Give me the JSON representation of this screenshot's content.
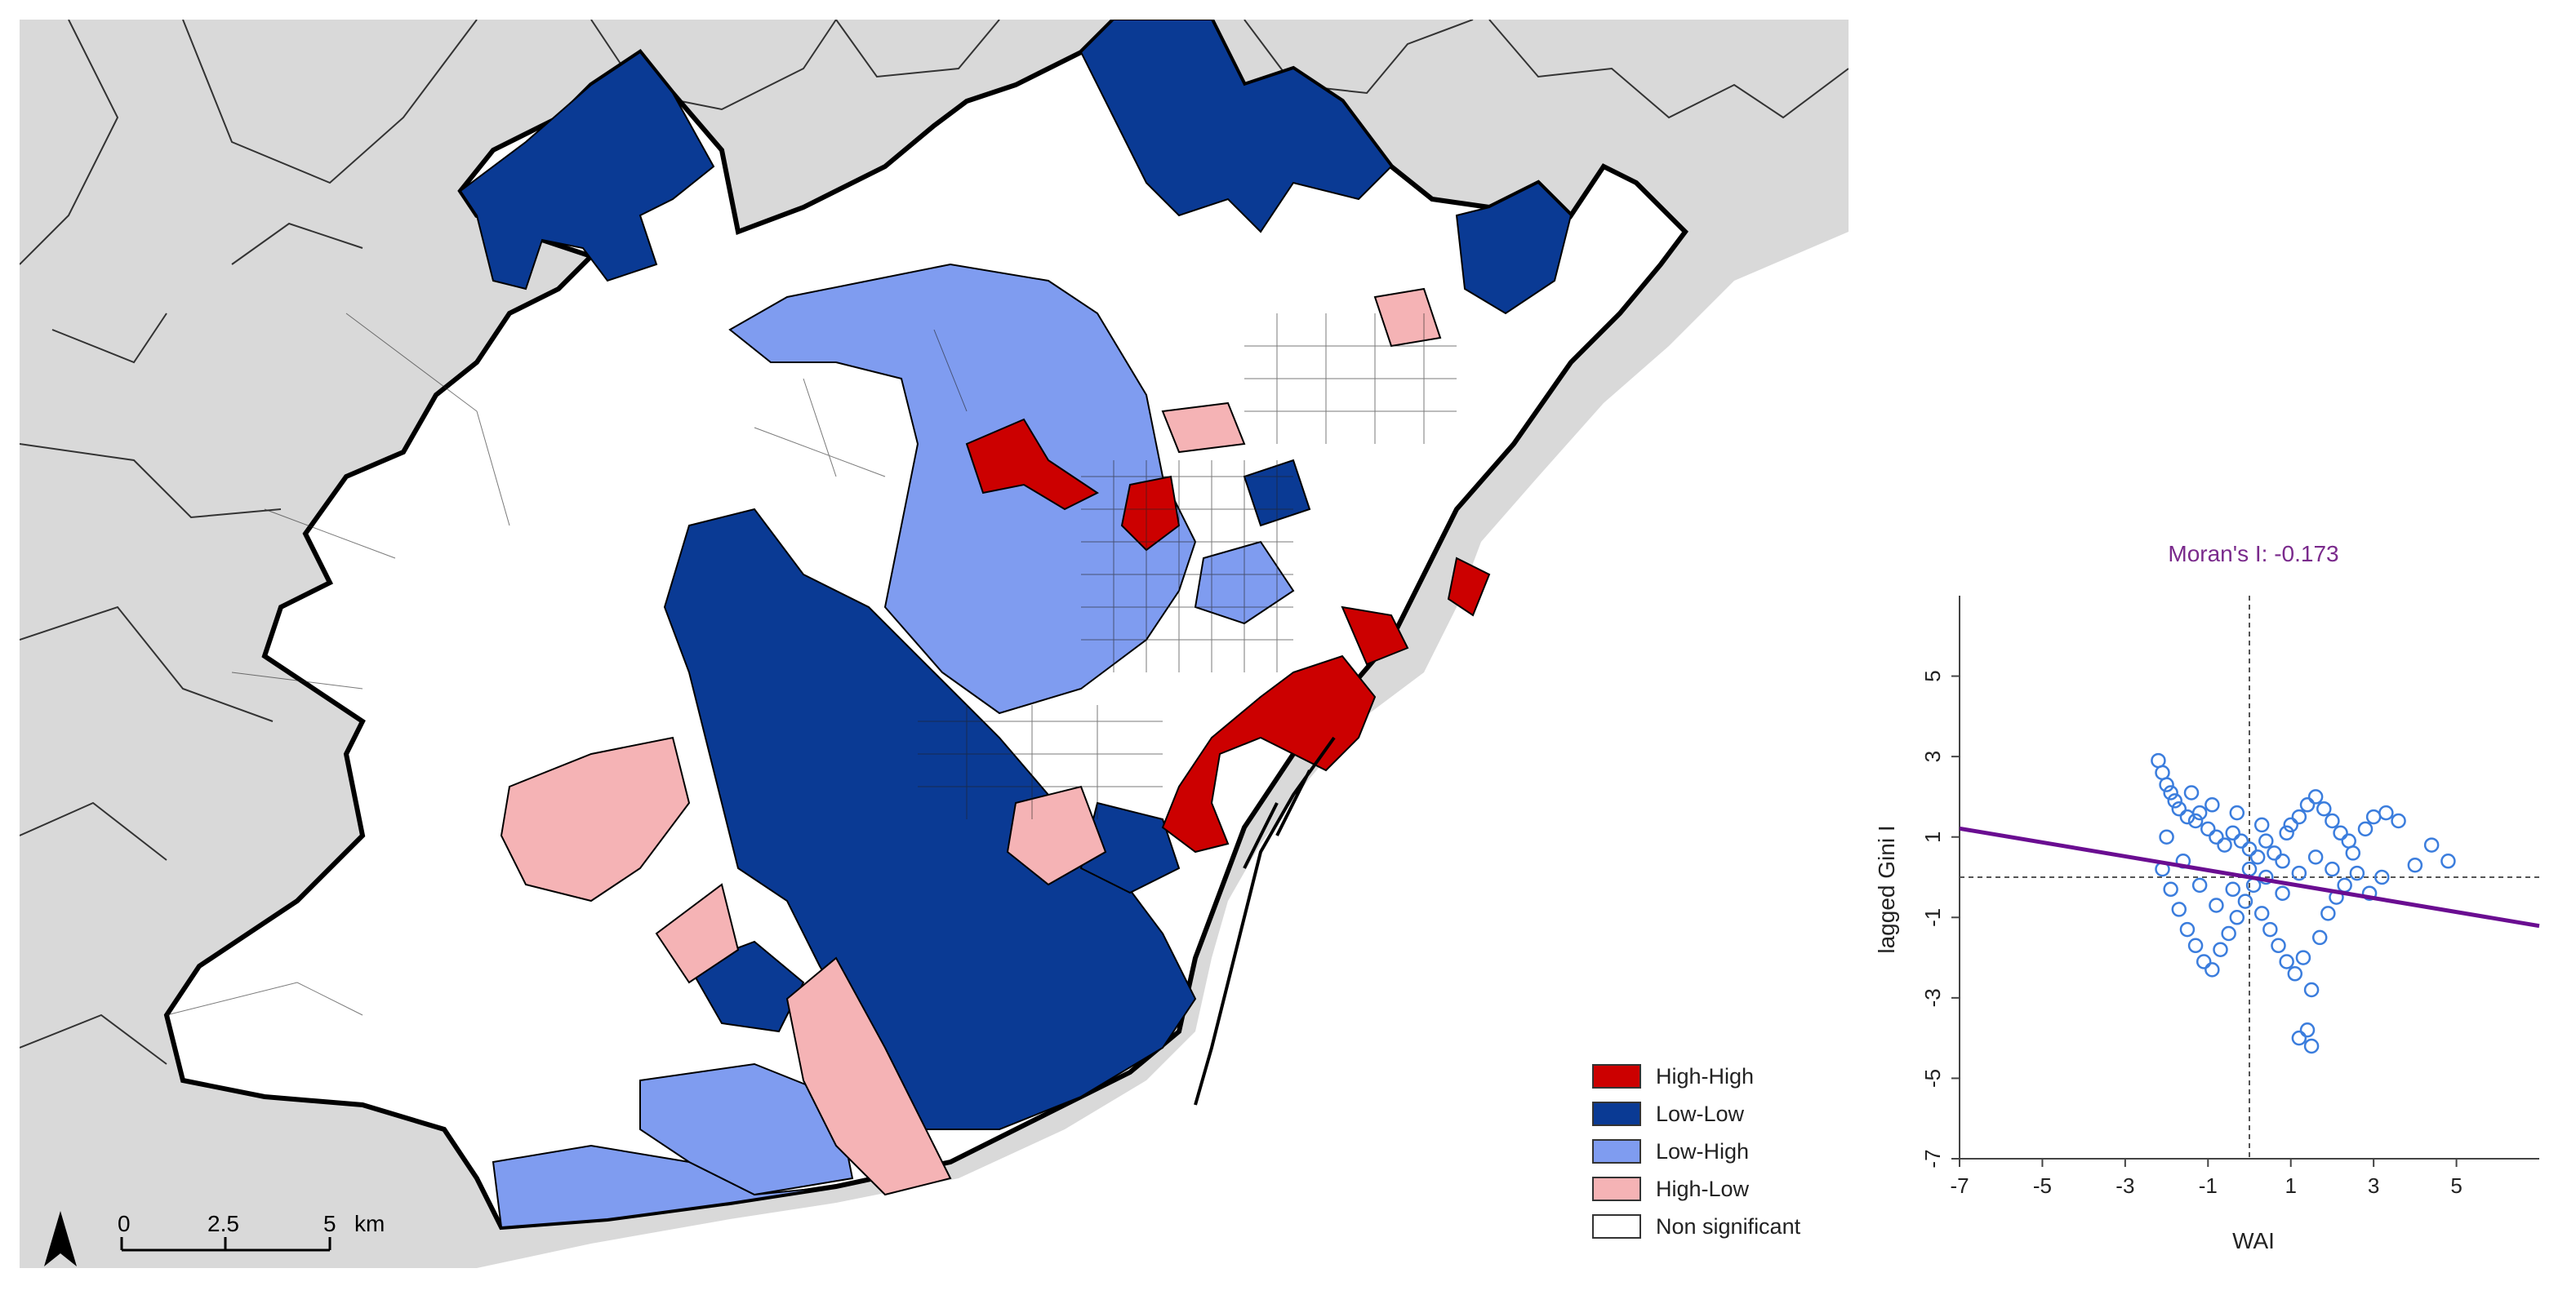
{
  "map": {
    "legend": [
      {
        "label": "High-High",
        "color": "#cc0000"
      },
      {
        "label": "Low-Low",
        "color": "#0a3a94"
      },
      {
        "label": "Low-High",
        "color": "#7f9cf0"
      },
      {
        "label": "High-Low",
        "color": "#f5b3b5"
      },
      {
        "label": "Non significant",
        "color": "#ffffff"
      }
    ],
    "scale_ticks": [
      "0",
      "2.5",
      "5"
    ],
    "scale_unit": "km",
    "north_icon": "north-arrow-icon",
    "colors": {
      "sea": "#ffffff",
      "outside": "#d9d9d9",
      "boundary": "#000000"
    }
  },
  "chart_data": {
    "type": "scatter",
    "title": "Moran's I: -0.173",
    "xlabel": "WAI",
    "ylabel": "lagged Gini I",
    "xlim": [
      -7,
      7
    ],
    "ylim": [
      -7,
      7
    ],
    "xticks": [
      "-7",
      "-5",
      "-3",
      "-1",
      "1",
      "3",
      "5"
    ],
    "yticks": [
      "-7",
      "-5",
      "-3",
      "-1",
      "1",
      "3",
      "5"
    ],
    "regression": {
      "slope": -0.173,
      "intercept": 0.0
    },
    "reference_lines": {
      "x": 0,
      "y": 0
    },
    "point_color": "#3b7ddd",
    "line_color": "#6a0d91",
    "series": [
      {
        "points": [
          [
            -2.2,
            2.9
          ],
          [
            -2.1,
            2.6
          ],
          [
            -2.0,
            2.3
          ],
          [
            -1.9,
            2.1
          ],
          [
            -1.8,
            1.9
          ],
          [
            -1.7,
            1.7
          ],
          [
            -1.5,
            1.5
          ],
          [
            -1.3,
            1.4
          ],
          [
            -1.2,
            1.6
          ],
          [
            -1.0,
            1.2
          ],
          [
            -0.8,
            1.0
          ],
          [
            -0.6,
            0.8
          ],
          [
            -0.4,
            1.1
          ],
          [
            -0.2,
            0.9
          ],
          [
            0.0,
            0.7
          ],
          [
            0.2,
            0.5
          ],
          [
            0.4,
            0.9
          ],
          [
            0.6,
            0.6
          ],
          [
            0.8,
            0.4
          ],
          [
            1.0,
            1.3
          ],
          [
            1.2,
            1.5
          ],
          [
            1.4,
            1.8
          ],
          [
            1.6,
            2.0
          ],
          [
            1.8,
            1.7
          ],
          [
            2.0,
            1.4
          ],
          [
            2.2,
            1.1
          ],
          [
            2.4,
            0.9
          ],
          [
            2.8,
            1.2
          ],
          [
            3.0,
            1.5
          ],
          [
            3.3,
            1.6
          ],
          [
            3.6,
            1.4
          ],
          [
            4.0,
            0.3
          ],
          [
            4.4,
            0.8
          ],
          [
            4.8,
            0.4
          ],
          [
            -2.1,
            0.2
          ],
          [
            -1.9,
            -0.3
          ],
          [
            -1.7,
            -0.8
          ],
          [
            -1.5,
            -1.3
          ],
          [
            -1.3,
            -1.7
          ],
          [
            -1.1,
            -2.1
          ],
          [
            -0.9,
            -2.3
          ],
          [
            -0.7,
            -1.8
          ],
          [
            -0.5,
            -1.4
          ],
          [
            -0.3,
            -1.0
          ],
          [
            -0.1,
            -0.6
          ],
          [
            0.1,
            -0.2
          ],
          [
            0.3,
            -0.9
          ],
          [
            0.5,
            -1.3
          ],
          [
            0.7,
            -1.7
          ],
          [
            0.9,
            -2.1
          ],
          [
            1.1,
            -2.4
          ],
          [
            1.3,
            -2.0
          ],
          [
            1.5,
            -2.8
          ],
          [
            1.7,
            -1.5
          ],
          [
            1.9,
            -0.9
          ],
          [
            2.1,
            -0.5
          ],
          [
            2.3,
            -0.2
          ],
          [
            2.6,
            0.1
          ],
          [
            2.9,
            -0.4
          ],
          [
            3.2,
            0.0
          ],
          [
            1.2,
            -4.0
          ],
          [
            1.5,
            -4.2
          ],
          [
            1.4,
            -3.8
          ],
          [
            -2.0,
            1.0
          ],
          [
            -1.6,
            0.4
          ],
          [
            -1.2,
            -0.2
          ],
          [
            -0.8,
            -0.7
          ],
          [
            -0.4,
            -0.3
          ],
          [
            0.0,
            0.2
          ],
          [
            0.4,
            0.0
          ],
          [
            0.8,
            -0.4
          ],
          [
            1.2,
            0.1
          ],
          [
            1.6,
            0.5
          ],
          [
            2.0,
            0.2
          ],
          [
            2.5,
            0.6
          ],
          [
            -1.4,
            2.1
          ],
          [
            -0.9,
            1.8
          ],
          [
            -0.3,
            1.6
          ],
          [
            0.3,
            1.3
          ],
          [
            0.9,
            1.1
          ]
        ]
      }
    ]
  }
}
